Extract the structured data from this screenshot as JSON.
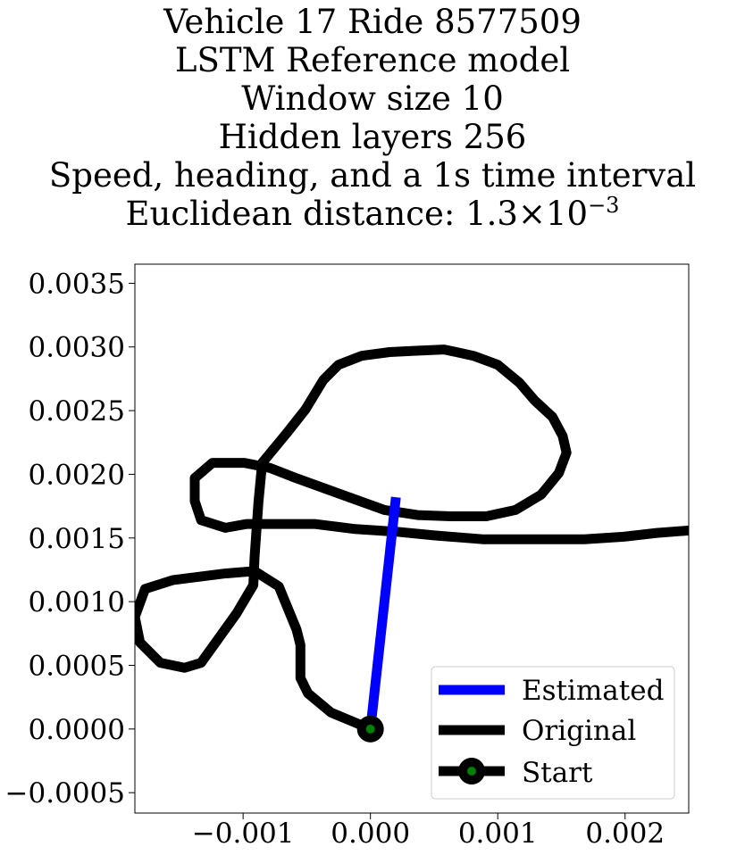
{
  "chart_data": {
    "type": "line",
    "title_lines": [
      "Vehicle 17 Ride 8577509",
      "LSTM Reference model",
      "Window size 10",
      "Hidden layers 256",
      "Speed, heading, and a 1s time interval"
    ],
    "title_distance_prefix": "Euclidean distance: ",
    "title_distance_mantissa": "1.3",
    "title_distance_times": "×",
    "title_distance_base": "10",
    "title_distance_exponent": "−3",
    "xlabel": "",
    "ylabel": "",
    "xlim": [
      -0.00185,
      0.0025
    ],
    "ylim": [
      -0.00066,
      0.00365
    ],
    "xticks": [
      -0.001,
      0.0,
      0.001,
      0.002
    ],
    "xtick_labels": [
      "−0.001",
      "0.000",
      "0.001",
      "0.002"
    ],
    "yticks": [
      -0.0005,
      0.0,
      0.0005,
      0.001,
      0.0015,
      0.002,
      0.0025,
      0.003,
      0.0035
    ],
    "ytick_labels": [
      "−0.0005",
      "0.0000",
      "0.0005",
      "0.0010",
      "0.0015",
      "0.0020",
      "0.0025",
      "0.0030",
      "0.0035"
    ],
    "grid": false,
    "legend_position": "lower-right",
    "series": [
      {
        "name": "Estimated",
        "color": "#0000ff",
        "points": [
          [
            0.0,
            0.0
          ],
          [
            0.0002,
            0.00182
          ]
        ]
      },
      {
        "name": "Original",
        "color": "#000000",
        "points": [
          [
            0.0,
            0.0
          ],
          [
            -0.00031,
            0.00013
          ],
          [
            -0.00049,
            0.00028
          ],
          [
            -0.00055,
            0.0004
          ],
          [
            -0.00055,
            0.00066
          ],
          [
            -0.00058,
            0.00078
          ],
          [
            -0.00072,
            0.00112
          ],
          [
            -0.00091,
            0.00124
          ],
          [
            -0.00115,
            0.00122
          ],
          [
            -0.00155,
            0.00117
          ],
          [
            -0.00177,
            0.0011
          ],
          [
            -0.00185,
            0.00088
          ],
          [
            -0.00181,
            0.00068
          ],
          [
            -0.00165,
            0.00052
          ],
          [
            -0.00146,
            0.00048
          ],
          [
            -0.00133,
            0.00052
          ],
          [
            -0.0012,
            0.0007
          ],
          [
            -0.00105,
            0.00091
          ],
          [
            -0.00092,
            0.00113
          ],
          [
            -0.00091,
            0.00135
          ],
          [
            -0.00088,
            0.00178
          ],
          [
            -0.00085,
            0.00209
          ],
          [
            -0.00066,
            0.00232
          ],
          [
            -0.00051,
            0.00251
          ],
          [
            -0.00037,
            0.00274
          ],
          [
            -0.00025,
            0.00286
          ],
          [
            -7e-05,
            0.00293
          ],
          [
            0.00015,
            0.00296
          ],
          [
            0.00036,
            0.00297
          ],
          [
            0.00058,
            0.00298
          ],
          [
            0.00081,
            0.00293
          ],
          [
            0.001,
            0.00286
          ],
          [
            0.00117,
            0.00272
          ],
          [
            0.00129,
            0.00258
          ],
          [
            0.00143,
            0.00245
          ],
          [
            0.00151,
            0.0023
          ],
          [
            0.00154,
            0.00217
          ],
          [
            0.00148,
            0.00201
          ],
          [
            0.00134,
            0.00184
          ],
          [
            0.00114,
            0.00172
          ],
          [
            0.00091,
            0.00167
          ],
          [
            0.00063,
            0.00167
          ],
          [
            0.00037,
            0.00168
          ],
          [
            0.00011,
            0.00172
          ],
          [
            -0.00014,
            0.00181
          ],
          [
            -0.00039,
            0.0019
          ],
          [
            -0.00061,
            0.00198
          ],
          [
            -0.00079,
            0.00205
          ],
          [
            -0.00099,
            0.00209
          ],
          [
            -0.00124,
            0.00209
          ],
          [
            -0.00138,
            0.00197
          ],
          [
            -0.00138,
            0.00179
          ],
          [
            -0.00133,
            0.00164
          ],
          [
            -0.00114,
            0.00158
          ],
          [
            -0.00097,
            0.00161
          ],
          [
            -0.0007,
            0.00161
          ],
          [
            -0.00044,
            0.00161
          ],
          [
            -0.00012,
            0.00157
          ],
          [
            0.0002,
            0.00155
          ],
          [
            0.0005,
            0.00152
          ],
          [
            0.00088,
            0.00149
          ],
          [
            0.00127,
            0.00149
          ],
          [
            0.00168,
            0.00149
          ],
          [
            0.00199,
            0.00151
          ],
          [
            0.00225,
            0.00154
          ],
          [
            0.00252,
            0.00156
          ]
        ]
      },
      {
        "name": "Start",
        "color": "#000000",
        "marker_color": "#008000",
        "points": [
          [
            0.0,
            0.0
          ]
        ]
      }
    ]
  }
}
